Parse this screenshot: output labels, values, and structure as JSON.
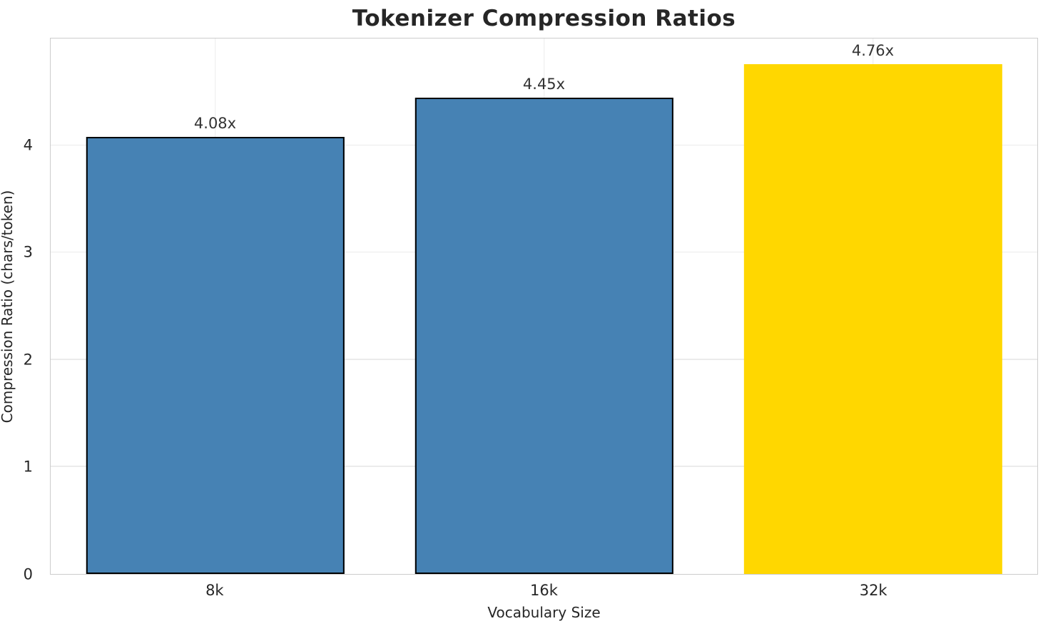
{
  "chart_data": {
    "type": "bar",
    "title": "Tokenizer Compression Ratios",
    "xlabel": "Vocabulary Size",
    "ylabel": "Compression Ratio (chars/token)",
    "categories": [
      "8k",
      "16k",
      "32k"
    ],
    "values": [
      4.08,
      4.45,
      4.76
    ],
    "value_labels": [
      "4.08x",
      "4.45x",
      "4.76x"
    ],
    "yticks": [
      0,
      1,
      2,
      3,
      4
    ],
    "ylim": [
      0,
      5
    ],
    "grid": true,
    "legend": "none",
    "bar_colors": [
      "#4682B4",
      "#4682B4",
      "#FFD700"
    ],
    "bar_edge_colors": [
      "#000000",
      "#000000",
      "none"
    ],
    "highlight_index": 2,
    "text_color": "#262626",
    "spine_color": "#cccccc",
    "grid_color": "#ebebeb"
  }
}
